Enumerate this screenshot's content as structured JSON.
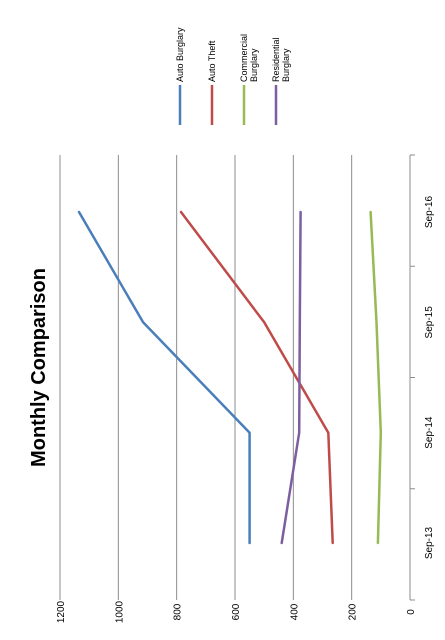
{
  "chart_data": {
    "type": "line",
    "title": "Monthly Comparison",
    "xlabel": "",
    "ylabel": "",
    "categories": [
      "Sep-13",
      "Sep-14",
      "Sep-15",
      "Sep-16"
    ],
    "ylim": [
      0,
      1200
    ],
    "yticks": [
      0,
      200,
      400,
      600,
      800,
      1000,
      1200
    ],
    "grid": true,
    "orientation": "rotated-90-clockwise",
    "legend_position": "top-right",
    "series": [
      {
        "name": "Auto Burglary",
        "color": "#4a7ebb",
        "values": [
          550,
          550,
          915,
          1135
        ]
      },
      {
        "name": "Auto Theft",
        "color": "#be4b48",
        "values": [
          265,
          280,
          500,
          785
        ]
      },
      {
        "name": "Commercial Burglary",
        "color": "#98b954",
        "values": [
          110,
          100,
          115,
          135
        ]
      },
      {
        "name": "Residential Burglary",
        "color": "#7d5fa0",
        "values": [
          440,
          380,
          378,
          375
        ]
      }
    ]
  }
}
